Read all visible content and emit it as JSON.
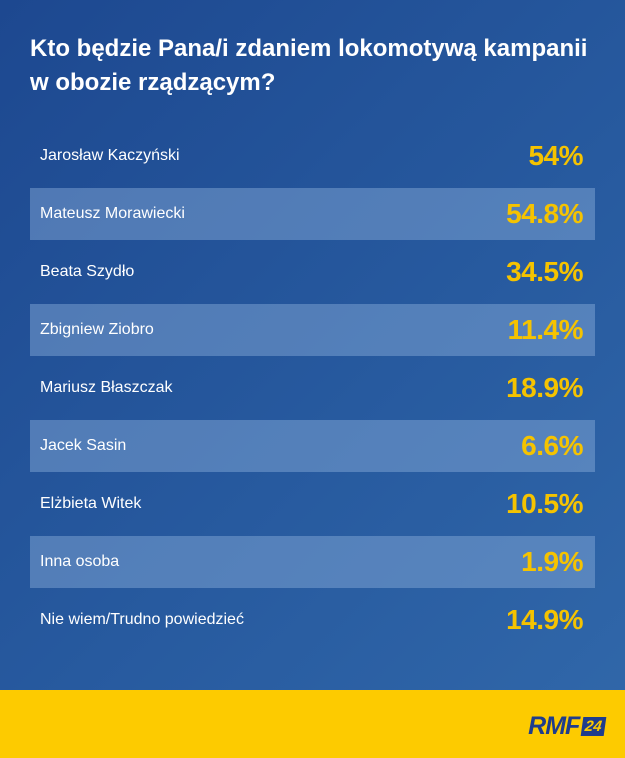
{
  "chart_data": {
    "type": "table",
    "title": "Kto będzie Pana/i zdaniem lokomotywą kampanii w obozie rządzącym?",
    "rows": [
      {
        "label": "Jarosław Kaczyński",
        "value": "54%"
      },
      {
        "label": "Mateusz Morawiecki",
        "value": "54.8%"
      },
      {
        "label": "Beata Szydło",
        "value": "34.5%"
      },
      {
        "label": "Zbigniew Ziobro",
        "value": "11.4%"
      },
      {
        "label": "Mariusz Błaszczak",
        "value": "18.9%"
      },
      {
        "label": "Jacek Sasin",
        "value": "6.6%"
      },
      {
        "label": "Elżbieta Witek",
        "value": "10.5%"
      },
      {
        "label": "Inna osoba",
        "value": "1.9%"
      },
      {
        "label": "Nie wiem/Trudno powiedzieć",
        "value": "14.9%"
      }
    ]
  },
  "logo": {
    "text": "RMF",
    "badge": "24"
  },
  "colors": {
    "background": "#275a9f",
    "value": "#f5c300",
    "footer": "#fdcb00",
    "logo": "#1f3d8c"
  }
}
